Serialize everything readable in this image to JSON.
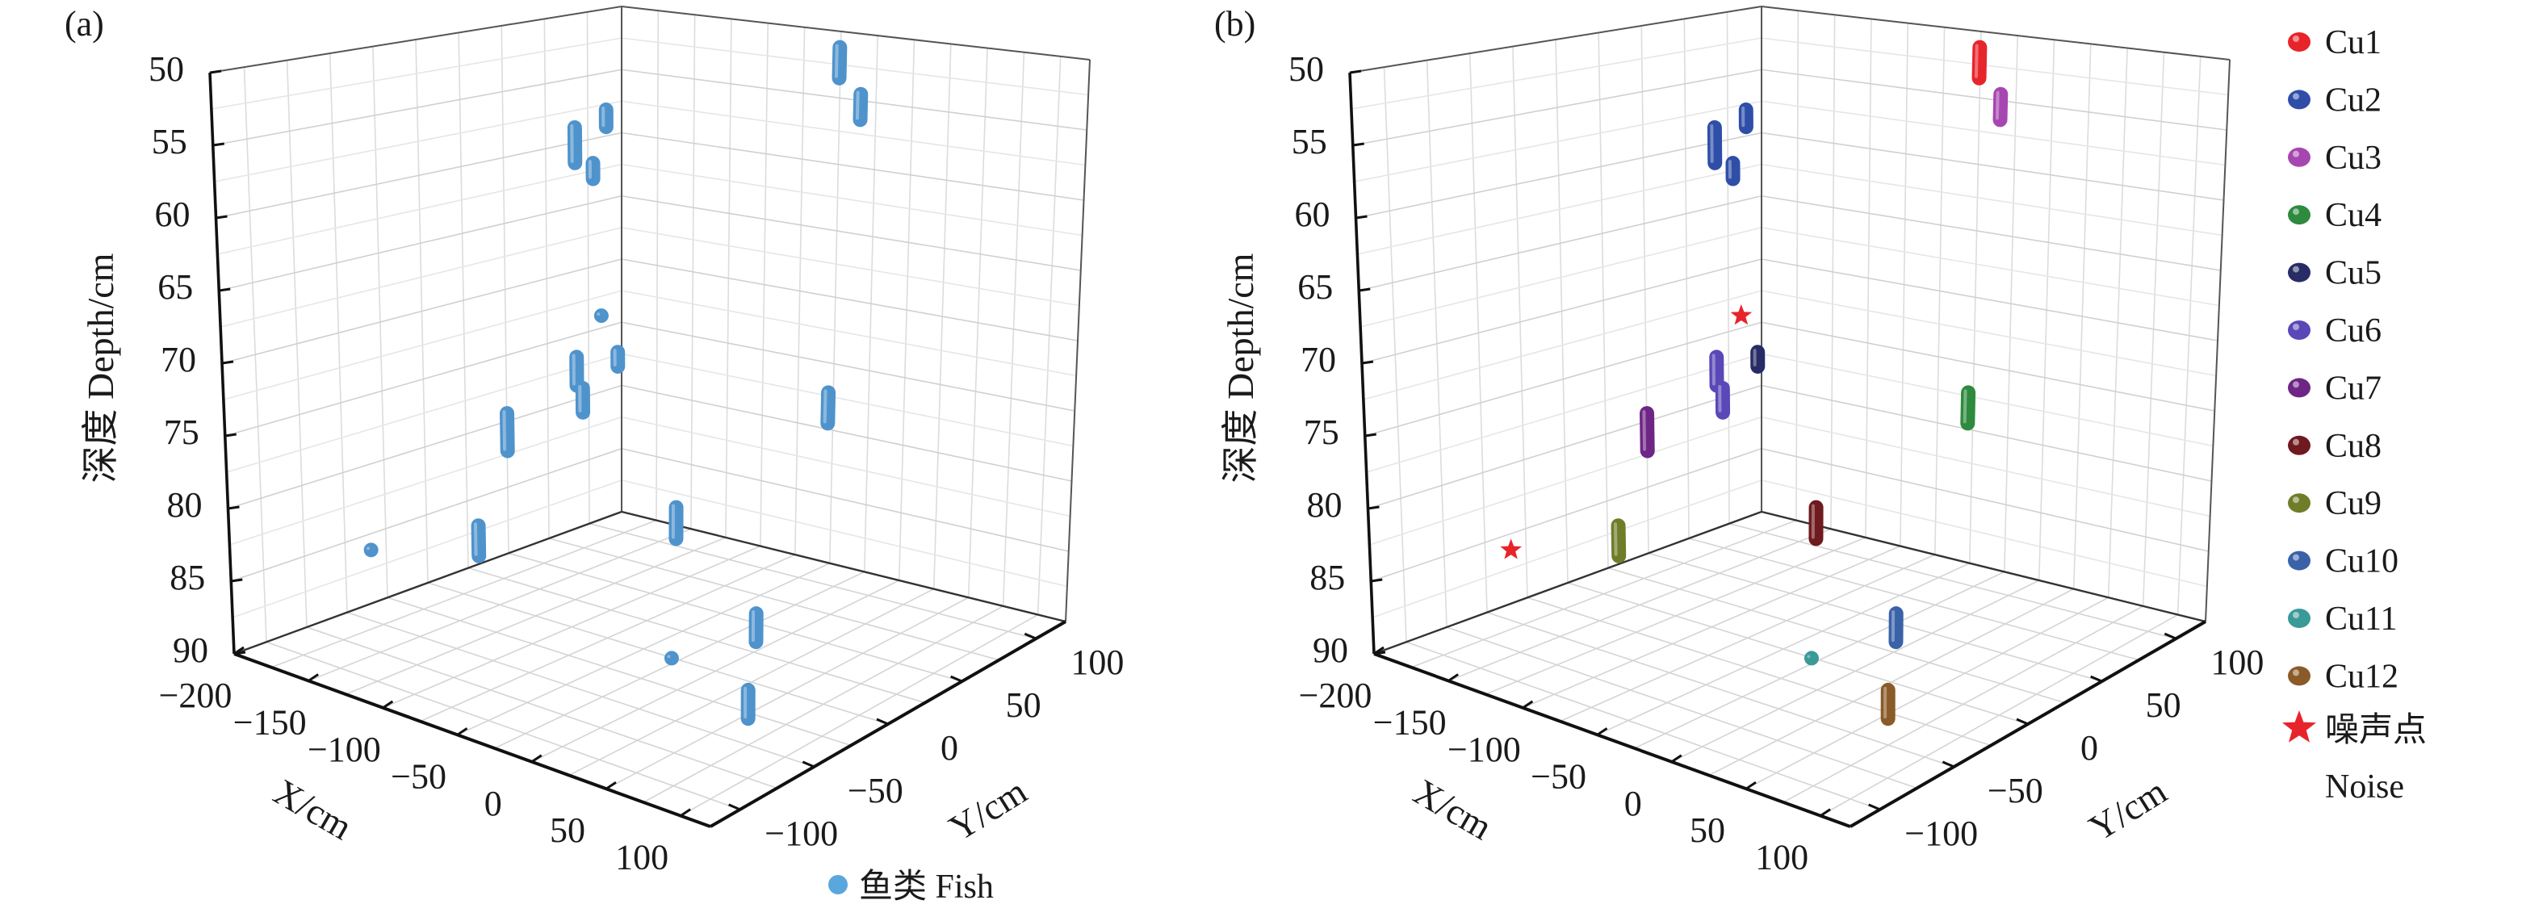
{
  "chart_data": [
    {
      "panel": "(a)",
      "type": "scatter3d",
      "xlabel": "X/cm",
      "ylabel": "Y/cm",
      "zlabel": "深度 Depth/cm",
      "xlim": [
        -200,
        120
      ],
      "ylim": [
        -120,
        120
      ],
      "zlim": [
        50,
        90
      ],
      "z_reversed": true,
      "grid": true,
      "xticks": [
        "−200",
        "−150",
        "−100",
        "−50",
        "0",
        "50",
        "100"
      ],
      "xtick_values": [
        -200,
        -150,
        -100,
        -50,
        0,
        50,
        100
      ],
      "yticks": [
        "−100",
        "−50",
        "0",
        "50",
        "100"
      ],
      "ytick_values": [
        -100,
        -50,
        0,
        50,
        100
      ],
      "zticks": [
        "50",
        "55",
        "60",
        "65",
        "70",
        "75",
        "80",
        "85",
        "90"
      ],
      "ztick_values": [
        50,
        55,
        60,
        65,
        70,
        75,
        80,
        85,
        90
      ],
      "legend": [
        {
          "label": "鱼类 Fish",
          "color": "#4f93cc"
        }
      ],
      "legend_position": "bottom-right",
      "series": [
        {
          "name": "鱼类 Fish",
          "color": "#4f93cc",
          "segments": [
            {
              "x": -45,
              "y": 115,
              "d0": 51.0,
              "d1": 53.3
            },
            {
              "x": -30,
              "y": 115,
              "d0": 54.3,
              "d1": 56.2
            },
            {
              "x": -95,
              "y": 0,
              "d0": 54.6,
              "d1": 57.1
            },
            {
              "x": -74,
              "y": 0,
              "d0": 53.0,
              "d1": 54.2
            },
            {
              "x": -83,
              "y": 0,
              "d0": 56.9,
              "d1": 58.0
            },
            {
              "x": -78,
              "y": 0,
              "d0": 67.5,
              "d1": 67.5
            },
            {
              "x": -67,
              "y": 0,
              "d0": 69.8,
              "d1": 70.8
            },
            {
              "x": -95,
              "y": 0,
              "d0": 70.8,
              "d1": 72.8
            },
            {
              "x": -91,
              "y": 0,
              "d0": 72.9,
              "d1": 74.6
            },
            {
              "x": -143,
              "y": 0,
              "d0": 76.0,
              "d1": 78.7
            },
            {
              "x": -48,
              "y": 115,
              "d0": 76.9,
              "d1": 79.2
            },
            {
              "x": -164,
              "y": 0,
              "d0": 84.7,
              "d1": 86.9
            },
            {
              "x": -171,
              "y": -60,
              "d0": 84.2,
              "d1": 84.2
            },
            {
              "x": -93,
              "y": 60,
              "d0": 84.0,
              "d1": 86.3
            },
            {
              "x": 28,
              "y": 0,
              "d0": 85.3,
              "d1": 87.2
            },
            {
              "x": 33,
              "y": -60,
              "d0": 85.2,
              "d1": 85.2
            },
            {
              "x": 85,
              "y": -60,
              "d0": 85.7,
              "d1": 87.5
            }
          ]
        }
      ]
    },
    {
      "panel": "(b)",
      "type": "scatter3d",
      "xlabel": "X/cm",
      "ylabel": "Y/cm",
      "zlabel": "深度 Depth/cm",
      "xlim": [
        -200,
        120
      ],
      "ylim": [
        -120,
        120
      ],
      "zlim": [
        50,
        90
      ],
      "z_reversed": true,
      "grid": true,
      "xticks": [
        "−200",
        "−150",
        "−100",
        "−50",
        "0",
        "50",
        "100"
      ],
      "xtick_values": [
        -200,
        -150,
        -100,
        -50,
        0,
        50,
        100
      ],
      "yticks": [
        "−100",
        "−50",
        "0",
        "50",
        "100"
      ],
      "ytick_values": [
        -100,
        -50,
        0,
        50,
        100
      ],
      "zticks": [
        "50",
        "55",
        "60",
        "65",
        "70",
        "75",
        "80",
        "85",
        "90"
      ],
      "ztick_values": [
        50,
        55,
        60,
        65,
        70,
        75,
        80,
        85,
        90
      ],
      "legend_position": "right",
      "noise_label_cn": "噪声点",
      "noise_label_en": "Noise",
      "series": [
        {
          "name": "Cu1",
          "color": "#e8242b",
          "segments": [
            {
              "x": -45,
              "y": 115,
              "d0": 51.0,
              "d1": 53.3
            }
          ]
        },
        {
          "name": "Cu2",
          "color": "#2f4ea8",
          "segments": [
            {
              "x": -95,
              "y": 0,
              "d0": 54.6,
              "d1": 57.1
            },
            {
              "x": -74,
              "y": 0,
              "d0": 53.0,
              "d1": 54.2
            },
            {
              "x": -83,
              "y": 0,
              "d0": 56.9,
              "d1": 58.0
            }
          ]
        },
        {
          "name": "Cu3",
          "color": "#a646b0",
          "segments": [
            {
              "x": -30,
              "y": 115,
              "d0": 54.3,
              "d1": 56.2
            }
          ]
        },
        {
          "name": "Cu4",
          "color": "#2e8a3e",
          "segments": [
            {
              "x": -48,
              "y": 115,
              "d0": 76.9,
              "d1": 79.2
            }
          ]
        },
        {
          "name": "Cu5",
          "color": "#272c66",
          "segments": [
            {
              "x": -67,
              "y": 0,
              "d0": 69.8,
              "d1": 70.8
            }
          ]
        },
        {
          "name": "Cu6",
          "color": "#5a48b8",
          "segments": [
            {
              "x": -95,
              "y": 0,
              "d0": 70.8,
              "d1": 72.8
            },
            {
              "x": -91,
              "y": 0,
              "d0": 72.9,
              "d1": 74.6
            }
          ]
        },
        {
          "name": "Cu7",
          "color": "#6e2585",
          "segments": [
            {
              "x": -143,
              "y": 0,
              "d0": 76.0,
              "d1": 78.7
            }
          ]
        },
        {
          "name": "Cu8",
          "color": "#6e1a1e",
          "segments": [
            {
              "x": -93,
              "y": 60,
              "d0": 84.0,
              "d1": 86.3
            }
          ]
        },
        {
          "name": "Cu9",
          "color": "#6f7d2a",
          "segments": [
            {
              "x": -164,
              "y": 0,
              "d0": 84.7,
              "d1": 86.9
            }
          ]
        },
        {
          "name": "Cu10",
          "color": "#3a62a8",
          "segments": [
            {
              "x": 28,
              "y": 0,
              "d0": 85.3,
              "d1": 87.2
            }
          ]
        },
        {
          "name": "Cu11",
          "color": "#3a9a98",
          "segments": [
            {
              "x": 33,
              "y": -60,
              "d0": 85.2,
              "d1": 85.2
            }
          ]
        },
        {
          "name": "Cu12",
          "color": "#8a5a28",
          "segments": [
            {
              "x": 85,
              "y": -60,
              "d0": 85.7,
              "d1": 87.5
            }
          ]
        },
        {
          "name": "噪声点 Noise",
          "color": "#e8242b",
          "marker": "star",
          "segments": [
            {
              "x": -78,
              "y": 0,
              "d0": 67.5,
              "d1": 67.5
            },
            {
              "x": -171,
              "y": -60,
              "d0": 84.2,
              "d1": 84.2
            }
          ]
        }
      ]
    }
  ]
}
